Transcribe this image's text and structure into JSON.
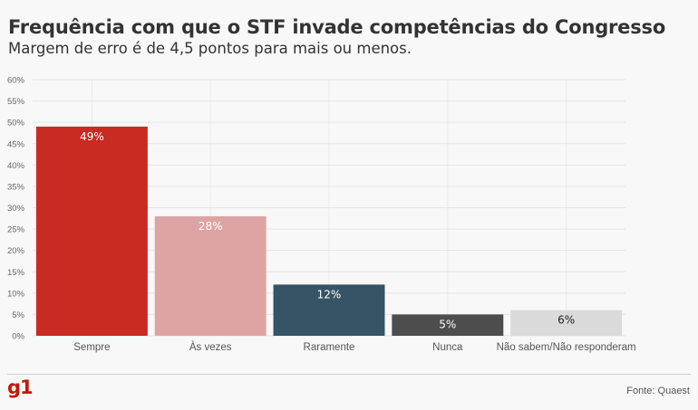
{
  "header": {
    "title": "Frequência com que o STF invade competências do Congresso",
    "subtitle": "Margem de erro é de 4,5 pontos para mais ou menos."
  },
  "footer": {
    "logo": "g1",
    "source": "Fonte: Quaest"
  },
  "chart_data": {
    "type": "bar",
    "title": "Frequência com que o STF invade competências do Congresso",
    "subtitle": "Margem de erro é de 4,5 pontos para mais ou menos.",
    "xlabel": "",
    "ylabel": "",
    "ylim": [
      0,
      60
    ],
    "yticks": [
      "0%",
      "5%",
      "10%",
      "15%",
      "20%",
      "25%",
      "30%",
      "35%",
      "40%",
      "45%",
      "50%",
      "55%",
      "60%"
    ],
    "grid": true,
    "legend": "none",
    "categories": [
      "Sempre",
      "Às vezes",
      "Raramente",
      "Nunca",
      "Não sabem/Não responderam"
    ],
    "values": [
      49,
      28,
      12,
      5,
      6
    ],
    "labels": [
      "49%",
      "28%",
      "12%",
      "5%",
      "6%"
    ],
    "colors": [
      "#c92a22",
      "#dea4a4",
      "#375466",
      "#4d4d4d",
      "#dadada"
    ],
    "label_colors": [
      "#ffffff",
      "#ffffff",
      "#ffffff",
      "#ffffff",
      "#222222"
    ]
  }
}
